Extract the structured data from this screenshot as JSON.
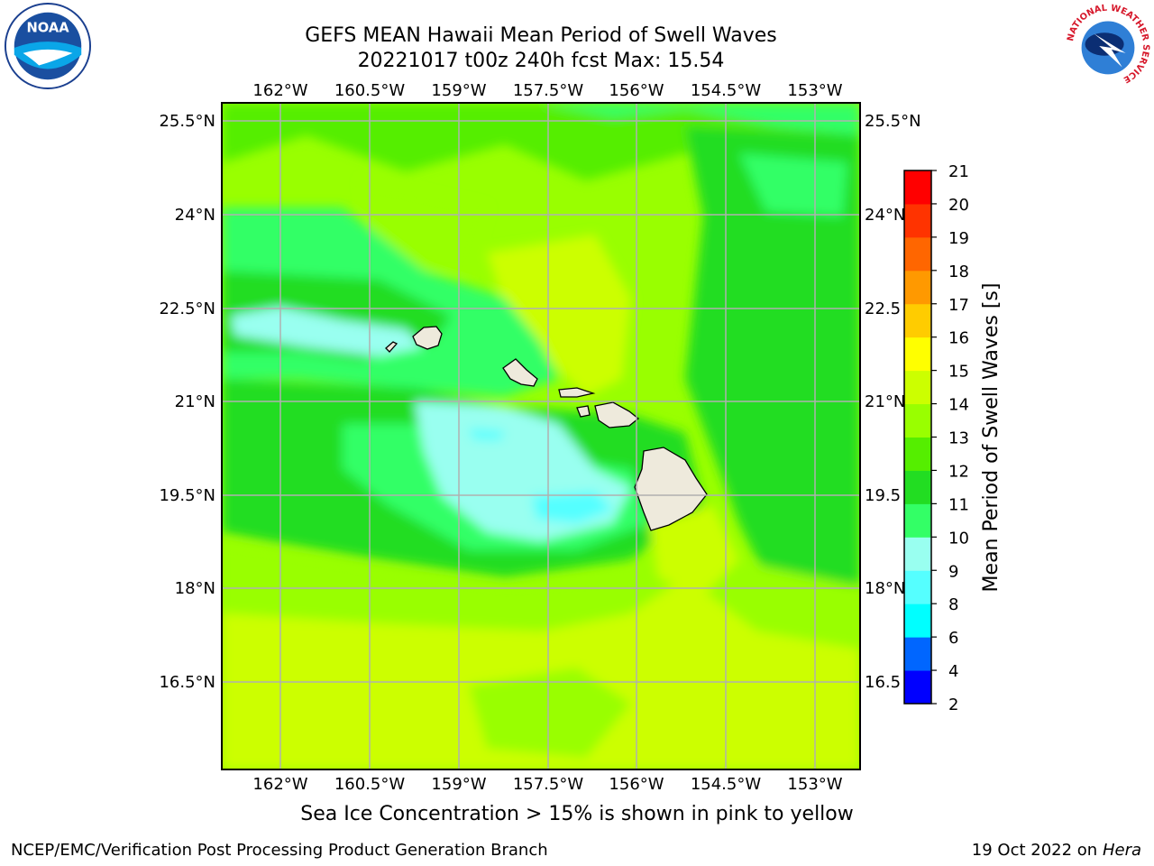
{
  "title": {
    "line1": "GEFS MEAN Hawaii Mean Period of Swell Waves",
    "line2": "20221017 t00z 240h fcst   Max: 15.54"
  },
  "map": {
    "lon_ticks": [
      "162°W",
      "160.5°W",
      "159°W",
      "157.5°W",
      "156°W",
      "154.5°W",
      "153°W"
    ],
    "lat_ticks": [
      "25.5°N",
      "24°N",
      "22.5°N",
      "21°N",
      "19.5°N",
      "18°N",
      "16.5°N"
    ],
    "lat_ticks_right": [
      "25.5°N",
      "24°N",
      "22.5",
      "21°N",
      "19.5",
      "18°N",
      "16.5"
    ],
    "land_color": "#eeeadc",
    "grid_color": "#b0b0b0"
  },
  "colorbar": {
    "label": "Mean Period of Swell Waves [s]",
    "ticks": [
      "2",
      "4",
      "6",
      "8",
      "9",
      "10",
      "11",
      "12",
      "13",
      "14",
      "15",
      "16",
      "17",
      "18",
      "19",
      "20",
      "21"
    ],
    "colors": [
      "#0000ff",
      "#0066ff",
      "#00ffff",
      "#55ffff",
      "#99fff0",
      "#33ff66",
      "#22dd22",
      "#55ee00",
      "#99ff00",
      "#ccff00",
      "#ffff00",
      "#ffcc00",
      "#ff9900",
      "#ff6600",
      "#ff3300",
      "#ff0000"
    ]
  },
  "caption": "Sea Ice Concentration > 15% is shown in pink to yellow",
  "footer": {
    "left": "NCEP/EMC/Verification Post Processing Product Generation Branch",
    "right_date": "19 Oct 2022 on ",
    "right_host": "Hera"
  },
  "logos": {
    "noaa_text": "NOAA",
    "nws_text": "NATIONAL WEATHER SERVICE"
  }
}
